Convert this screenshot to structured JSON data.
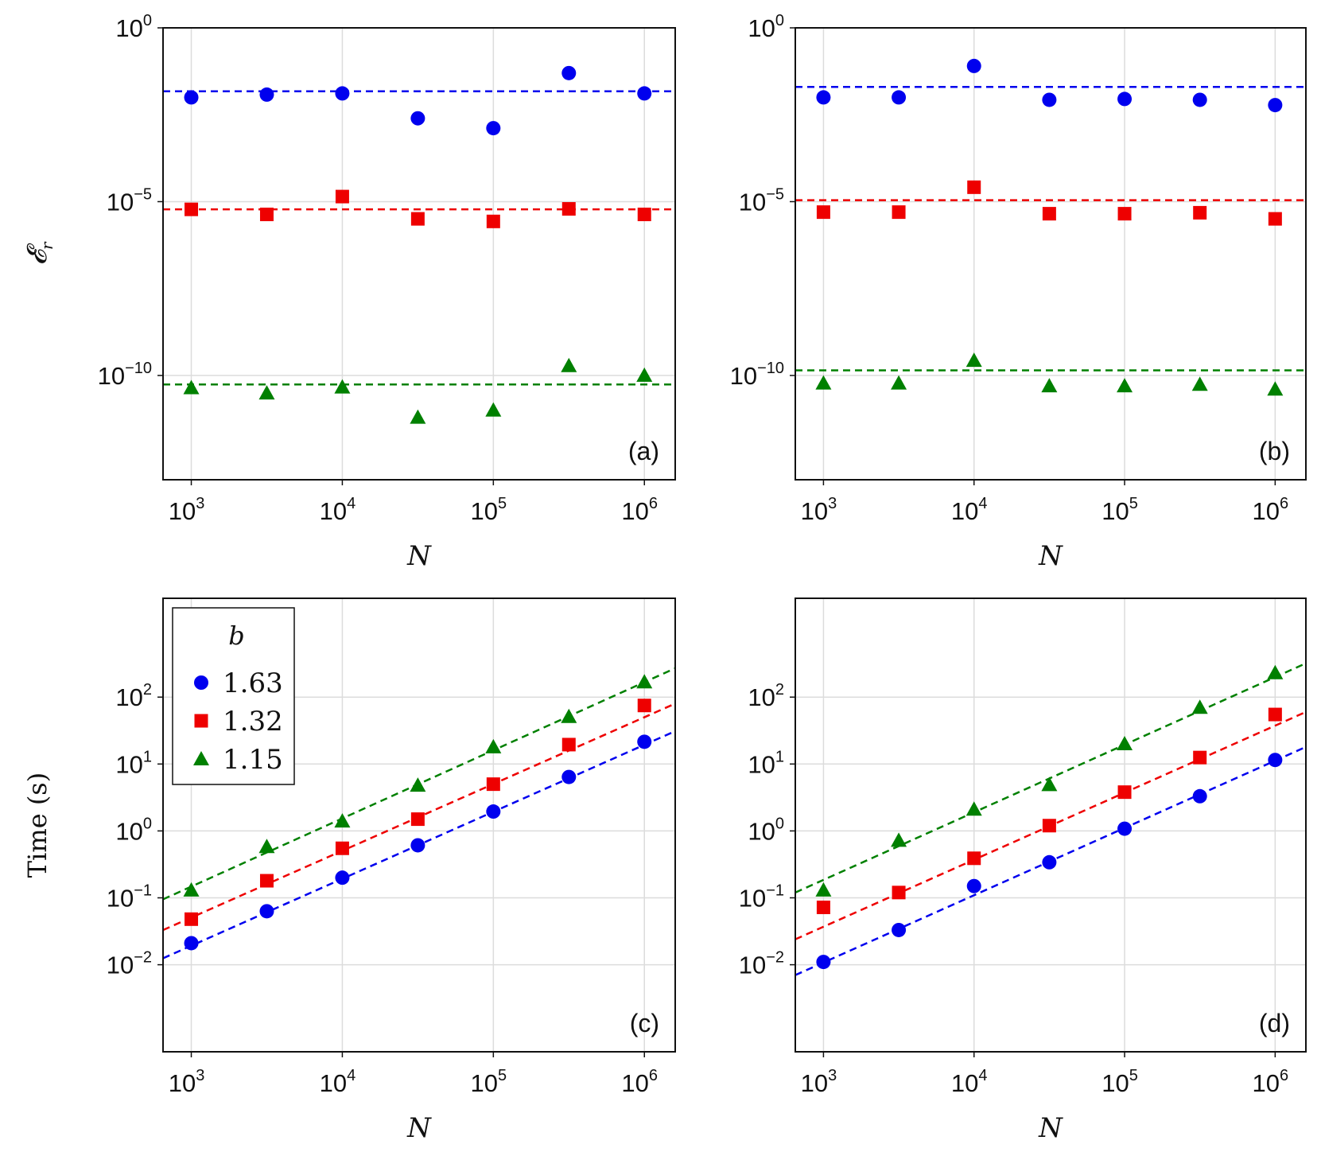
{
  "legend": {
    "title": "b",
    "entries": [
      {
        "label": "1.63",
        "color": "#0000ee",
        "marker": "circle"
      },
      {
        "label": "1.32",
        "color": "#ee0000",
        "marker": "square"
      },
      {
        "label": "1.15",
        "color": "#008000",
        "marker": "triangle"
      }
    ]
  },
  "chart_data": [
    {
      "type": "scatter",
      "panel_label": "(a)",
      "xlabel": "N",
      "ylabel": "𝓔",
      "ylabel_sub": "r",
      "xscale": "log",
      "yscale": "log",
      "xlim": [
        650,
        1600000
      ],
      "ylim": [
        1e-13,
        1
      ],
      "xticks": [
        {
          "base": "10",
          "exp": "3"
        },
        {
          "base": "10",
          "exp": "4"
        },
        {
          "base": "10",
          "exp": "5"
        },
        {
          "base": "10",
          "exp": "6"
        }
      ],
      "yticks": [
        {
          "base": "10",
          "exp": "0"
        },
        {
          "base": "10",
          "exp": "−5"
        },
        {
          "base": "10",
          "exp": "−10"
        }
      ],
      "x": [
        1000,
        3162,
        10000,
        31623,
        100000,
        316228,
        1000000
      ],
      "series": [
        {
          "name": "1.63",
          "values": [
            0.01,
            0.012,
            0.013,
            0.0025,
            0.0013,
            0.05,
            0.013
          ],
          "fit": 0.015
        },
        {
          "name": "1.32",
          "values": [
            6e-06,
            4.3e-06,
            1.4e-05,
            3.2e-06,
            2.7e-06,
            6.2e-06,
            4.3e-06
          ],
          "fit": 6e-06
        },
        {
          "name": "1.15",
          "values": [
            4.4e-11,
            3.1e-11,
            4.6e-11,
            6.2e-12,
            1e-11,
            1.9e-10,
            1e-10
          ],
          "fit": 5.5e-11
        }
      ],
      "legend_position": "none"
    },
    {
      "type": "scatter",
      "panel_label": "(b)",
      "xlabel": "N",
      "ylabel": "",
      "xscale": "log",
      "yscale": "log",
      "xlim": [
        650,
        1600000
      ],
      "ylim": [
        1e-13,
        1
      ],
      "xticks": [
        {
          "base": "10",
          "exp": "3"
        },
        {
          "base": "10",
          "exp": "4"
        },
        {
          "base": "10",
          "exp": "5"
        },
        {
          "base": "10",
          "exp": "6"
        }
      ],
      "yticks": [
        {
          "base": "10",
          "exp": "0"
        },
        {
          "base": "10",
          "exp": "−5"
        },
        {
          "base": "10",
          "exp": "−10"
        }
      ],
      "x": [
        1000,
        3162,
        10000,
        31623,
        100000,
        316228,
        1000000
      ],
      "series": [
        {
          "name": "1.63",
          "values": [
            0.01,
            0.01,
            0.08,
            0.0085,
            0.009,
            0.0085,
            0.006
          ],
          "fit": 0.02
        },
        {
          "name": "1.32",
          "values": [
            5e-06,
            5e-06,
            2.6e-05,
            4.5e-06,
            4.5e-06,
            4.8e-06,
            3.2e-06
          ],
          "fit": 1.1e-05
        },
        {
          "name": "1.15",
          "values": [
            6e-11,
            6e-11,
            2.7e-10,
            5e-11,
            5e-11,
            5.5e-11,
            4e-11
          ],
          "fit": 1.4e-10
        }
      ],
      "legend_position": "none"
    },
    {
      "type": "scatter",
      "panel_label": "(c)",
      "xlabel": "N",
      "ylabel": "Time (s)",
      "xscale": "log",
      "yscale": "log",
      "xlim": [
        650,
        1600000
      ],
      "ylim": [
        0.0005,
        3000
      ],
      "xticks": [
        {
          "base": "10",
          "exp": "3"
        },
        {
          "base": "10",
          "exp": "4"
        },
        {
          "base": "10",
          "exp": "5"
        },
        {
          "base": "10",
          "exp": "6"
        }
      ],
      "yticks": [
        {
          "base": "10",
          "exp": "2"
        },
        {
          "base": "10",
          "exp": "1"
        },
        {
          "base": "10",
          "exp": "0"
        },
        {
          "base": "10",
          "exp": "−1"
        },
        {
          "base": "10",
          "exp": "−2"
        }
      ],
      "x": [
        1000,
        3162,
        10000,
        31623,
        100000,
        316228,
        1000000
      ],
      "series": [
        {
          "name": "1.63",
          "values": [
            0.021,
            0.063,
            0.2,
            0.61,
            1.95,
            6.4,
            21.5
          ],
          "fit_line": [
            [
              650,
              0.0125
            ],
            [
              1600000,
              31
            ]
          ]
        },
        {
          "name": "1.32",
          "values": [
            0.048,
            0.18,
            0.55,
            1.5,
            5.0,
            19.5,
            75
          ],
          "fit_line": [
            [
              650,
              0.033
            ],
            [
              1600000,
              80
            ]
          ]
        },
        {
          "name": "1.15",
          "values": [
            0.13,
            0.58,
            1.4,
            4.8,
            18,
            51,
            168
          ],
          "fit_line": [
            [
              650,
              0.095
            ],
            [
              1600000,
              270
            ]
          ]
        }
      ],
      "legend_position": "top-left"
    },
    {
      "type": "scatter",
      "panel_label": "(d)",
      "xlabel": "N",
      "ylabel": "",
      "xscale": "log",
      "yscale": "log",
      "xlim": [
        650,
        1600000
      ],
      "ylim": [
        0.0005,
        3000
      ],
      "xticks": [
        {
          "base": "10",
          "exp": "3"
        },
        {
          "base": "10",
          "exp": "4"
        },
        {
          "base": "10",
          "exp": "5"
        },
        {
          "base": "10",
          "exp": "6"
        }
      ],
      "yticks": [
        {
          "base": "10",
          "exp": "2"
        },
        {
          "base": "10",
          "exp": "1"
        },
        {
          "base": "10",
          "exp": "0"
        },
        {
          "base": "10",
          "exp": "−1"
        },
        {
          "base": "10",
          "exp": "−2"
        }
      ],
      "x": [
        1000,
        3162,
        10000,
        31623,
        100000,
        316228,
        1000000
      ],
      "series": [
        {
          "name": "1.63",
          "values": [
            0.011,
            0.033,
            0.15,
            0.34,
            1.08,
            3.3,
            11.5
          ],
          "fit_line": [
            [
              650,
              0.007
            ],
            [
              1600000,
              18
            ]
          ]
        },
        {
          "name": "1.32",
          "values": [
            0.072,
            0.12,
            0.39,
            1.2,
            3.8,
            12.5,
            55
          ],
          "fit_line": [
            [
              650,
              0.024
            ],
            [
              1600000,
              60
            ]
          ]
        },
        {
          "name": "1.15",
          "values": [
            0.13,
            0.72,
            2.1,
            4.9,
            20,
            70,
            230
          ],
          "fit_line": [
            [
              650,
              0.12
            ],
            [
              1600000,
              320
            ]
          ]
        }
      ],
      "legend_position": "none"
    }
  ]
}
